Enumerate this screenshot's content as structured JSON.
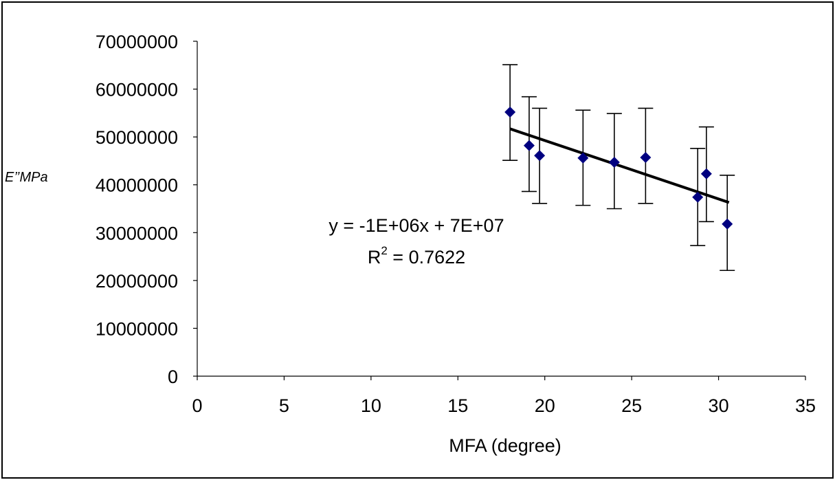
{
  "chart_data": {
    "type": "scatter",
    "title": "",
    "xlabel": "MFA (degree)",
    "ylabel": "E’’MPa",
    "xlim": [
      0,
      35
    ],
    "ylim": [
      0,
      70000000
    ],
    "x_ticks": [
      0,
      5,
      10,
      15,
      20,
      25,
      30,
      35
    ],
    "y_ticks": [
      0,
      10000000,
      20000000,
      30000000,
      40000000,
      50000000,
      60000000,
      70000000
    ],
    "x_tick_labels": [
      "0",
      "5",
      "10",
      "15",
      "20",
      "25",
      "30",
      "35"
    ],
    "y_tick_labels": [
      "0",
      "10000000",
      "20000000",
      "30000000",
      "40000000",
      "50000000",
      "60000000",
      "70000000"
    ],
    "grid": false,
    "legend": "none",
    "series": [
      {
        "marker": "diamond",
        "color": "#000080",
        "points": [
          {
            "x": 18.0,
            "y": 55200000,
            "err_low": 45100000,
            "err_high": 65100000
          },
          {
            "x": 19.1,
            "y": 48200000,
            "err_low": 38600000,
            "err_high": 58400000
          },
          {
            "x": 19.7,
            "y": 46100000,
            "err_low": 36100000,
            "err_high": 56000000
          },
          {
            "x": 22.2,
            "y": 45600000,
            "err_low": 35700000,
            "err_high": 55600000
          },
          {
            "x": 24.0,
            "y": 44700000,
            "err_low": 35000000,
            "err_high": 54900000
          },
          {
            "x": 25.8,
            "y": 45700000,
            "err_low": 36100000,
            "err_high": 56000000
          },
          {
            "x": 28.8,
            "y": 37400000,
            "err_low": 27300000,
            "err_high": 47600000
          },
          {
            "x": 29.3,
            "y": 42300000,
            "err_low": 32300000,
            "err_high": 52100000
          },
          {
            "x": 30.5,
            "y": 31800000,
            "err_low": 22100000,
            "err_high": 42000000
          }
        ]
      }
    ],
    "trendline": {
      "type": "linear",
      "color": "#000000",
      "x_start": 18.0,
      "y_start": 51700000,
      "x_end": 30.6,
      "y_end": 36300000
    },
    "annotations": {
      "equation": "y = -1E+06x + 7E+07",
      "r2_prefix": "R",
      "r2_sup": "2",
      "r2_rest": " = 0.7622"
    }
  }
}
